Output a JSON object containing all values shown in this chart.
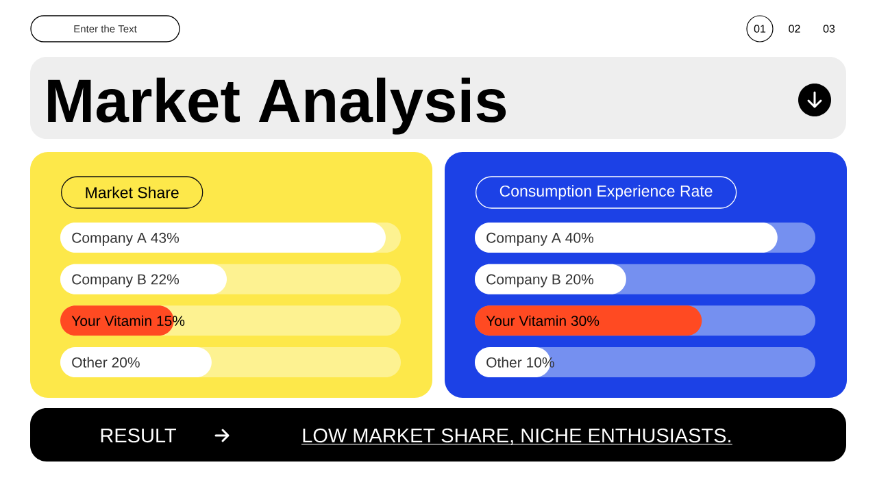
{
  "chart_data": [
    {
      "type": "other",
      "title": "Market Analysis",
      "annotations": [
        "Enter the Text",
        "01",
        "02",
        "03"
      ]
    },
    {
      "type": "bar",
      "title": "Market Share",
      "orientation": "horizontal",
      "categories": [
        "Company A",
        "Company B",
        "Your Vitamin",
        "Other"
      ],
      "values": [
        43,
        22,
        15,
        20
      ],
      "value_labels": [
        "43%",
        "22%",
        "15%",
        "20%"
      ],
      "colors": [
        "#ffffff",
        "#ffffff",
        "#ff4a22",
        "#ffffff"
      ],
      "xlim": [
        0,
        45
      ],
      "bands": [
        {
          "axis": "x",
          "from": 0,
          "to": 45,
          "color": "#fdf291"
        },
        {
          "axis": "x",
          "from": 0,
          "to": 45,
          "color": "#fdf291"
        },
        {
          "axis": "x",
          "from": 0,
          "to": 45,
          "color": "#fdf291"
        },
        {
          "axis": "x",
          "from": 0,
          "to": 45,
          "color": "#fdf291"
        }
      ]
    },
    {
      "type": "bar",
      "title": "Consumption Experience Rate",
      "orientation": "horizontal",
      "categories": [
        "Company A",
        "Company B",
        "Your Vitamin",
        "Other"
      ],
      "values": [
        40,
        20,
        30,
        10
      ],
      "value_labels": [
        "40%",
        "20%",
        "30%",
        "10%"
      ],
      "colors": [
        "#ffffff",
        "#ffffff",
        "#ff4a22",
        "#ffffff"
      ],
      "xlim": [
        0,
        45
      ],
      "bands": [
        {
          "axis": "x",
          "from": 0,
          "to": 45,
          "color": "#7590f0"
        },
        {
          "axis": "x",
          "from": 0,
          "to": 45,
          "color": "#7590f0"
        },
        {
          "axis": "x",
          "from": 0,
          "to": 45,
          "color": "#7590f0"
        },
        {
          "axis": "x",
          "from": 0,
          "to": 45,
          "color": "#7590f0"
        }
      ]
    },
    {
      "type": "other",
      "annotations": [
        "RESULT",
        "LOW MARKET SHARE, NICHE ENTHUSIASTS."
      ]
    }
  ]
}
